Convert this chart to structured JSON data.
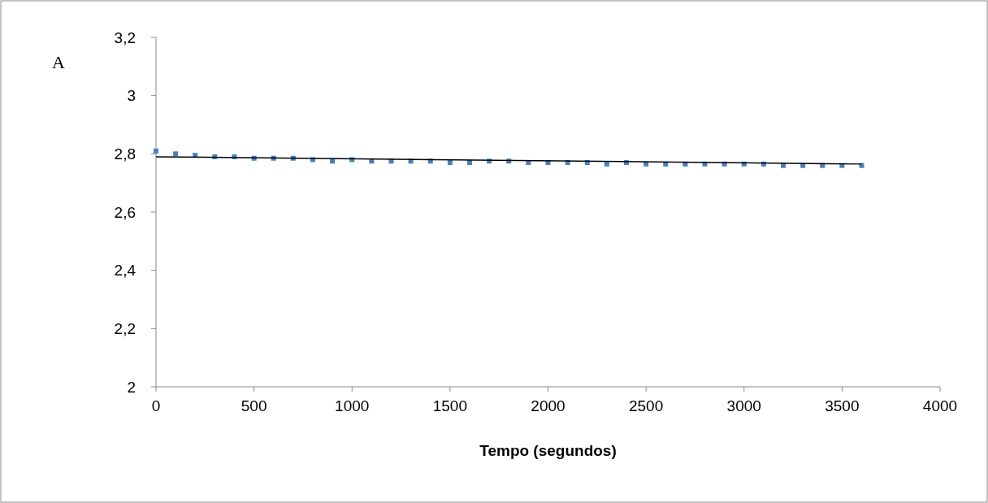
{
  "chart_data": {
    "type": "scatter",
    "xlabel": "Tempo (segundos)",
    "ylabel": "A",
    "xlim": [
      0,
      4000
    ],
    "xticks": [
      0,
      500,
      1000,
      1500,
      2000,
      2500,
      3000,
      3500,
      4000
    ],
    "ylim": [
      2,
      3.2
    ],
    "yticks": [
      {
        "value": 2,
        "label": "2"
      },
      {
        "value": 2.2,
        "label": "2,2"
      },
      {
        "value": 2.4,
        "label": "2,4"
      },
      {
        "value": 2.6,
        "label": "2,6"
      },
      {
        "value": 2.8,
        "label": "2,8"
      },
      {
        "value": 3,
        "label": "3"
      },
      {
        "value": 3.2,
        "label": "3,2"
      }
    ],
    "grid": false,
    "series": [
      {
        "marker": "square",
        "color": "#4a7ebb",
        "x": [
          0,
          100,
          200,
          300,
          400,
          500,
          600,
          700,
          800,
          900,
          1000,
          1100,
          1200,
          1300,
          1400,
          1500,
          1600,
          1700,
          1800,
          1900,
          2000,
          2100,
          2200,
          2300,
          2400,
          2500,
          2600,
          2700,
          2800,
          2900,
          3000,
          3100,
          3200,
          3300,
          3400,
          3500,
          3600
        ],
        "values": [
          2.81,
          2.8,
          2.795,
          2.79,
          2.79,
          2.785,
          2.785,
          2.785,
          2.78,
          2.775,
          2.78,
          2.775,
          2.775,
          2.775,
          2.775,
          2.77,
          2.77,
          2.775,
          2.775,
          2.77,
          2.77,
          2.77,
          2.77,
          2.765,
          2.77,
          2.765,
          2.765,
          2.765,
          2.765,
          2.765,
          2.765,
          2.765,
          2.76,
          2.76,
          2.76,
          2.76,
          2.76
        ]
      },
      {
        "type": "line",
        "color": "#000000",
        "x": [
          0,
          3600
        ],
        "values": [
          2.79,
          2.765
        ]
      }
    ]
  }
}
